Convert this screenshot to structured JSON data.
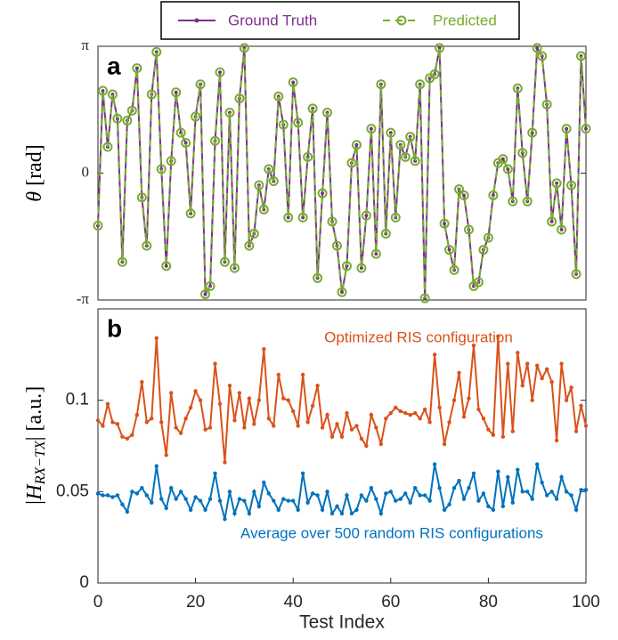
{
  "chart_data": [
    {
      "type": "line",
      "panel_label": "a",
      "ylabel": {
        "symbol": "θ",
        "rest": " [rad]"
      },
      "legend": "top",
      "x": [
        0,
        1,
        2,
        3,
        4,
        5,
        6,
        7,
        8,
        9,
        10,
        11,
        12,
        13,
        14,
        15,
        16,
        17,
        18,
        19,
        20,
        21,
        22,
        23,
        24,
        25,
        26,
        27,
        28,
        29,
        30,
        31,
        32,
        33,
        34,
        35,
        36,
        37,
        38,
        39,
        40,
        41,
        42,
        43,
        44,
        45,
        46,
        47,
        48,
        49,
        50,
        51,
        52,
        53,
        54,
        55,
        56,
        57,
        58,
        59,
        60,
        61,
        62,
        63,
        64,
        65,
        66,
        67,
        68,
        69,
        70,
        71,
        72,
        73,
        74,
        75,
        76,
        77,
        78,
        79,
        80,
        81,
        82,
        83,
        84,
        85,
        86,
        87,
        88,
        89,
        90,
        91,
        92,
        93,
        94,
        95,
        96,
        97,
        98,
        99,
        100
      ],
      "xlim": [
        0,
        100
      ],
      "ylim": [
        -3.14159,
        3.14159
      ],
      "yticks": [
        {
          "value": -3.14159,
          "label": "-π"
        },
        0,
        {
          "value": 3.14159,
          "label": "π"
        }
      ],
      "series": [
        {
          "name": "Ground Truth",
          "color": "#7e2f8e",
          "values": [
            -1.3,
            2.04,
            0.65,
            1.95,
            1.35,
            -2.2,
            1.3,
            1.55,
            2.6,
            -0.6,
            -1.8,
            1.95,
            3.0,
            0.1,
            -2.3,
            0.3,
            2.0,
            1.0,
            0.75,
            -1.0,
            1.4,
            2.2,
            -3.0,
            -2.8,
            0.8,
            2.5,
            -2.2,
            1.5,
            -2.35,
            1.85,
            3.1,
            -1.8,
            -1.5,
            -0.3,
            -0.9,
            0.1,
            -0.2,
            1.9,
            1.2,
            -1.1,
            2.25,
            1.25,
            -1.1,
            0.4,
            1.6,
            -2.6,
            -0.5,
            1.5,
            -1.2,
            -1.8,
            -2.95,
            -2.3,
            0.25,
            0.7,
            -2.35,
            -1.05,
            1.1,
            -2.0,
            2.2,
            -1.5,
            1.0,
            -1.1,
            0.7,
            0.4,
            0.9,
            0.3,
            2.2,
            -3.1,
            2.35,
            2.45,
            3.1,
            -1.25,
            -1.9,
            -2.4,
            -0.4,
            -0.55,
            -1.4,
            -2.8,
            -2.7,
            -1.9,
            -1.6,
            -0.55,
            0.25,
            0.35,
            0.1,
            -0.7,
            2.1,
            0.5,
            -0.7,
            1.0,
            3.1,
            2.9,
            1.7,
            -1.2,
            -0.25,
            -1.4,
            1.1,
            -0.3,
            -2.5,
            2.9,
            1.1
          ]
        },
        {
          "name": "Predicted",
          "color": "#77ac30",
          "values": [
            -1.3,
            2.04,
            0.65,
            1.95,
            1.35,
            -2.2,
            1.3,
            1.55,
            2.6,
            -0.6,
            -1.8,
            1.95,
            3.0,
            0.1,
            -2.3,
            0.3,
            2.0,
            1.0,
            0.75,
            -1.0,
            1.4,
            2.2,
            -3.0,
            -2.8,
            0.8,
            2.5,
            -2.2,
            1.5,
            -2.35,
            1.85,
            3.1,
            -1.8,
            -1.5,
            -0.3,
            -0.9,
            0.1,
            -0.2,
            1.9,
            1.2,
            -1.1,
            2.25,
            1.25,
            -1.1,
            0.4,
            1.6,
            -2.6,
            -0.5,
            1.5,
            -1.2,
            -1.8,
            -2.95,
            -2.3,
            0.25,
            0.7,
            -2.35,
            -1.05,
            1.1,
            -2.0,
            2.2,
            -1.5,
            1.0,
            -1.1,
            0.7,
            0.4,
            0.9,
            0.3,
            2.2,
            -3.1,
            2.35,
            2.45,
            3.1,
            -1.25,
            -1.9,
            -2.4,
            -0.4,
            -0.55,
            -1.4,
            -2.8,
            -2.7,
            -1.9,
            -1.6,
            -0.55,
            0.25,
            0.35,
            0.1,
            -0.7,
            2.1,
            0.5,
            -0.7,
            1.0,
            3.1,
            2.9,
            1.7,
            -1.2,
            -0.25,
            -1.4,
            1.1,
            -0.3,
            -2.5,
            2.9,
            1.1
          ]
        }
      ]
    },
    {
      "type": "line",
      "panel_label": "b",
      "ylabel": {
        "left": "|H",
        "sub": "RX−TX",
        "right": "| [a.u.]"
      },
      "xlabel": "Test Index",
      "x": [
        0,
        1,
        2,
        3,
        4,
        5,
        6,
        7,
        8,
        9,
        10,
        11,
        12,
        13,
        14,
        15,
        16,
        17,
        18,
        19,
        20,
        21,
        22,
        23,
        24,
        25,
        26,
        27,
        28,
        29,
        30,
        31,
        32,
        33,
        34,
        35,
        36,
        37,
        38,
        39,
        40,
        41,
        42,
        43,
        44,
        45,
        46,
        47,
        48,
        49,
        50,
        51,
        52,
        53,
        54,
        55,
        56,
        57,
        58,
        59,
        60,
        61,
        62,
        63,
        64,
        65,
        66,
        67,
        68,
        69,
        70,
        71,
        72,
        73,
        74,
        75,
        76,
        77,
        78,
        79,
        80,
        81,
        82,
        83,
        84,
        85,
        86,
        87,
        88,
        89,
        90,
        91,
        92,
        93,
        94,
        95,
        96,
        97,
        98,
        99,
        100
      ],
      "xlim": [
        0,
        100
      ],
      "xticks": [
        0,
        20,
        40,
        60,
        80,
        100
      ],
      "ylim": [
        0,
        0.15
      ],
      "yticks": [
        0,
        0.05,
        0.1
      ],
      "series": [
        {
          "name": "Optimized RIS configuration",
          "color": "#d95319",
          "values": [
            0.089,
            0.086,
            0.098,
            0.088,
            0.087,
            0.08,
            0.079,
            0.081,
            0.092,
            0.11,
            0.088,
            0.09,
            0.134,
            0.088,
            0.07,
            0.104,
            0.085,
            0.082,
            0.09,
            0.096,
            0.105,
            0.1,
            0.084,
            0.085,
            0.12,
            0.098,
            0.066,
            0.108,
            0.089,
            0.104,
            0.085,
            0.101,
            0.087,
            0.1,
            0.128,
            0.09,
            0.086,
            0.114,
            0.101,
            0.1,
            0.094,
            0.086,
            0.114,
            0.088,
            0.097,
            0.108,
            0.085,
            0.092,
            0.08,
            0.087,
            0.08,
            0.093,
            0.084,
            0.086,
            0.079,
            0.075,
            0.092,
            0.085,
            0.076,
            0.09,
            0.093,
            0.096,
            0.094,
            0.093,
            0.092,
            0.093,
            0.09,
            0.095,
            0.088,
            0.125,
            0.096,
            0.076,
            0.088,
            0.1,
            0.115,
            0.091,
            0.101,
            0.13,
            0.095,
            0.09,
            0.084,
            0.081,
            0.135,
            0.08,
            0.12,
            0.083,
            0.126,
            0.108,
            0.12,
            0.1,
            0.119,
            0.112,
            0.117,
            0.11,
            0.078,
            0.12,
            0.1,
            0.107,
            0.083,
            0.097,
            0.086
          ]
        },
        {
          "name": "Average over 500 random RIS configurations",
          "color": "#0072bd",
          "values": [
            0.049,
            0.048,
            0.048,
            0.047,
            0.048,
            0.043,
            0.039,
            0.05,
            0.049,
            0.052,
            0.048,
            0.044,
            0.064,
            0.046,
            0.041,
            0.052,
            0.046,
            0.05,
            0.046,
            0.04,
            0.047,
            0.045,
            0.04,
            0.046,
            0.06,
            0.045,
            0.035,
            0.05,
            0.038,
            0.046,
            0.045,
            0.038,
            0.05,
            0.042,
            0.055,
            0.049,
            0.045,
            0.04,
            0.046,
            0.045,
            0.045,
            0.04,
            0.06,
            0.044,
            0.049,
            0.048,
            0.04,
            0.05,
            0.038,
            0.042,
            0.038,
            0.048,
            0.038,
            0.04,
            0.048,
            0.045,
            0.052,
            0.046,
            0.038,
            0.049,
            0.05,
            0.045,
            0.046,
            0.049,
            0.044,
            0.052,
            0.048,
            0.048,
            0.045,
            0.065,
            0.052,
            0.04,
            0.043,
            0.052,
            0.056,
            0.046,
            0.052,
            0.06,
            0.045,
            0.049,
            0.042,
            0.04,
            0.061,
            0.042,
            0.058,
            0.044,
            0.062,
            0.05,
            0.05,
            0.046,
            0.065,
            0.055,
            0.048,
            0.05,
            0.046,
            0.058,
            0.05,
            0.048,
            0.04,
            0.051,
            0.051
          ]
        }
      ]
    }
  ]
}
